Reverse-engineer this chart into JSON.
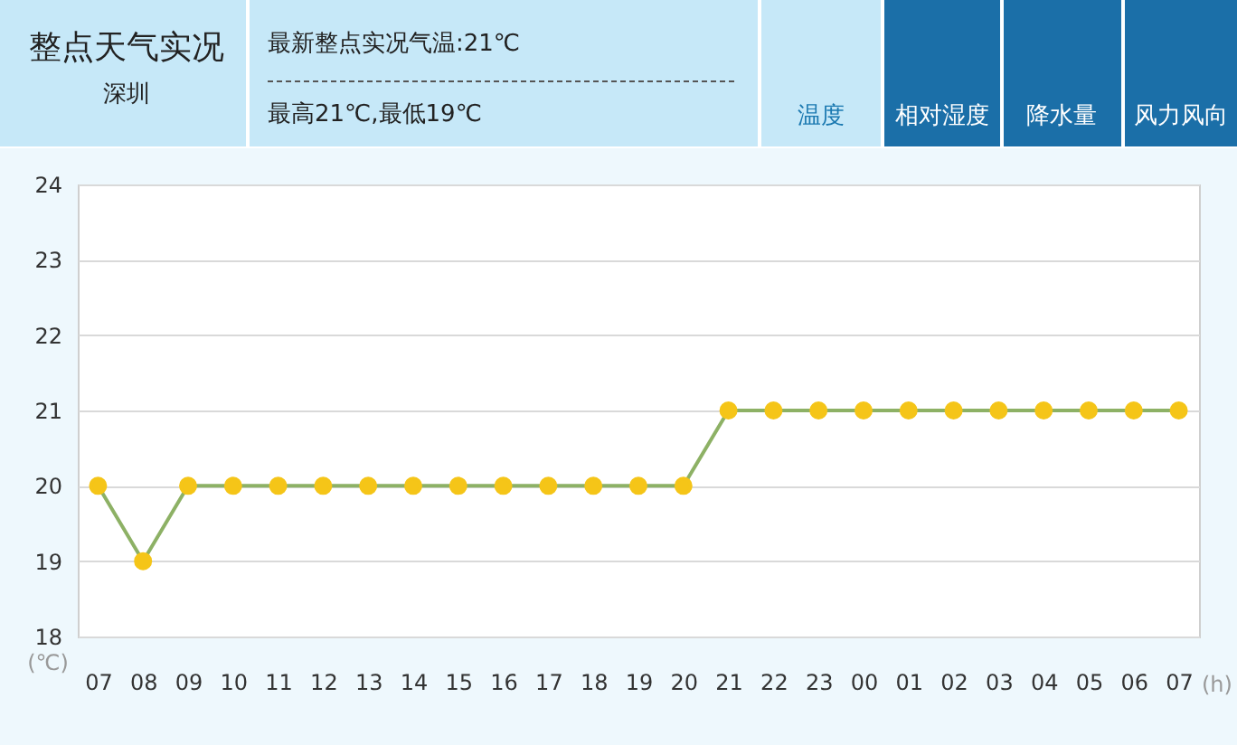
{
  "chart_data": {
    "type": "line",
    "title": "整点天气实况",
    "subtitle": "深圳",
    "annotations": [
      "最新整点实况气温:21℃",
      "最高21℃,最低19℃",
      "温度",
      "相对湿度",
      "降水量",
      "风力风向"
    ],
    "xlabel": "(h)",
    "ylabel": "(℃)",
    "categories": [
      "07",
      "08",
      "09",
      "10",
      "11",
      "12",
      "13",
      "14",
      "15",
      "16",
      "17",
      "18",
      "19",
      "20",
      "21",
      "22",
      "23",
      "00",
      "01",
      "02",
      "03",
      "04",
      "05",
      "06",
      "07"
    ],
    "series": [
      {
        "color": "#8db165",
        "values": [
          20,
          19,
          20,
          20,
          20,
          20,
          20,
          20,
          20,
          20,
          20,
          20,
          20,
          20,
          21,
          21,
          21,
          21,
          21,
          21,
          21,
          21,
          21,
          21,
          21
        ]
      }
    ],
    "ylim": [
      18,
      24
    ],
    "yticks": [
      18,
      19,
      20,
      21,
      22,
      23,
      24
    ],
    "grid": "y",
    "marker": "circle",
    "line_style": "solid"
  }
}
